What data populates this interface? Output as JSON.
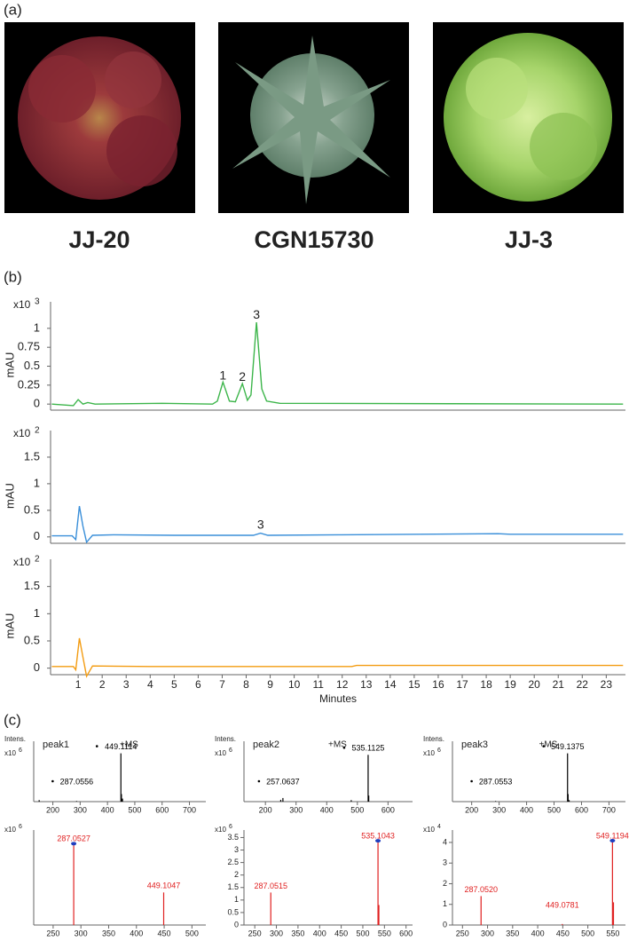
{
  "panel_labels": [
    "(a)",
    "(b)",
    "(c)"
  ],
  "samples": [
    "JJ-20",
    "CGN15730",
    "JJ-3"
  ],
  "chart_data": [
    {
      "type": "line",
      "y_label": "mAU",
      "y_multiplier": {
        "base": "x10",
        "exponent": "3"
      },
      "xlim": [
        -0.15,
        23.8
      ],
      "ylim": [
        -0.08,
        1.35
      ],
      "yticks": [
        0,
        0.25,
        0.5,
        0.75,
        1
      ],
      "series": [
        {
          "color": "#3cb54a",
          "x": [
            -0.1,
            0.8,
            1.0,
            1.2,
            1.4,
            1.7,
            4.5,
            6.6,
            6.8,
            7.03,
            7.3,
            7.55,
            7.84,
            8.05,
            8.2,
            8.43,
            8.65,
            8.85,
            9.4,
            23.7
          ],
          "values": [
            0,
            -0.02,
            0.06,
            0,
            0.02,
            0,
            0.01,
            0,
            0.04,
            0.29,
            0.04,
            0.03,
            0.27,
            0.05,
            0.12,
            1.08,
            0.2,
            0.04,
            0.01,
            0
          ]
        }
      ],
      "annotations": [
        {
          "text": "1",
          "x": 7.03,
          "y": 0.37
        },
        {
          "text": "2",
          "x": 7.84,
          "y": 0.35
        },
        {
          "text": "3",
          "x": 8.43,
          "y": 1.17
        }
      ]
    },
    {
      "type": "line",
      "y_label": "mAU",
      "y_multiplier": {
        "base": "x10",
        "exponent": "2"
      },
      "xlim": [
        -0.15,
        23.8
      ],
      "ylim": [
        -0.12,
        2.0
      ],
      "yticks": [
        0,
        0.5,
        1,
        1.5
      ],
      "series": [
        {
          "color": "#3a8fd9",
          "x": [
            -0.1,
            0.75,
            0.9,
            1.05,
            1.2,
            1.35,
            1.6,
            2.5,
            5,
            8.3,
            8.6,
            8.9,
            12,
            18.5,
            19,
            23.7
          ],
          "values": [
            0.02,
            0.02,
            -0.05,
            0.58,
            0.2,
            -0.1,
            0.03,
            0.04,
            0.03,
            0.03,
            0.07,
            0.03,
            0.04,
            0.06,
            0.05,
            0.05
          ]
        }
      ],
      "annotations": [
        {
          "text": "3",
          "x": 8.6,
          "y": 0.22
        }
      ]
    },
    {
      "type": "line",
      "y_label": "mAU",
      "y_multiplier": {
        "base": "x10",
        "exponent": "2"
      },
      "x_label": "Minutes",
      "xlim": [
        -0.15,
        23.8
      ],
      "ylim": [
        -0.12,
        2.0
      ],
      "yticks": [
        0,
        0.5,
        1,
        1.5
      ],
      "xticks": [
        1,
        2,
        3,
        4,
        5,
        6,
        7,
        8,
        9,
        10,
        11,
        12,
        13,
        14,
        15,
        16,
        17,
        18,
        19,
        20,
        21,
        22,
        23
      ],
      "series": [
        {
          "color": "#f39c12",
          "x": [
            -0.1,
            0.8,
            0.9,
            1.05,
            1.2,
            1.35,
            1.6,
            4,
            12.4,
            12.6,
            23.7
          ],
          "values": [
            0.03,
            0.03,
            -0.03,
            0.55,
            0.2,
            -0.15,
            0.04,
            0.03,
            0.03,
            0.05,
            0.05
          ]
        }
      ]
    },
    {
      "type": "stem",
      "title": "peak1",
      "mode_label": "+MS",
      "y_label": "Intens.",
      "y_multiplier": {
        "base": "x10",
        "exponent": "6"
      },
      "xlim": [
        130,
        760
      ],
      "ylim": [
        0,
        2
      ],
      "xticks": [
        200,
        300,
        400,
        500,
        600,
        700
      ],
      "series": [
        {
          "color": "#000000",
          "x": [
            150,
            287.0556,
            449.1114,
            451.1,
            455
          ],
          "values": [
            0.05,
            0.02,
            1.6,
            0.25,
            0.1
          ],
          "x_labels": [
            null,
            "287.0556",
            "449.1114",
            null,
            null
          ]
        }
      ]
    },
    {
      "type": "stem",
      "title": "peak2",
      "mode_label": "+MS",
      "y_label": "Intens.",
      "y_multiplier": {
        "base": "x10",
        "exponent": "6"
      },
      "xlim": [
        130,
        680
      ],
      "ylim": [
        0,
        2
      ],
      "xticks": [
        200,
        300,
        400,
        500,
        600
      ],
      "series": [
        {
          "color": "#000000",
          "x": [
            250,
            257.0637,
            480,
            535.1125,
            537.1
          ],
          "values": [
            0.06,
            0.12,
            0.05,
            1.55,
            0.2
          ],
          "x_labels": [
            null,
            "257.0637",
            null,
            "535.1125",
            null
          ]
        }
      ]
    },
    {
      "type": "stem",
      "title": "peak3",
      "mode_label": "+MS",
      "y_label": "Intens.",
      "y_multiplier": {
        "base": "x10",
        "exponent": "6"
      },
      "xlim": [
        130,
        760
      ],
      "ylim": [
        0,
        2
      ],
      "xticks": [
        200,
        300,
        400,
        500,
        600,
        700
      ],
      "series": [
        {
          "color": "#000000",
          "x": [
            287.0553,
            549.1375,
            551.1,
            555
          ],
          "values": [
            0.02,
            1.6,
            0.25,
            0.05
          ],
          "x_labels": [
            "287.0553",
            "549.1375",
            null,
            null
          ]
        }
      ]
    },
    {
      "type": "stem",
      "y_multiplier": {
        "base": "x10",
        "exponent": "6"
      },
      "xlim": [
        215,
        525
      ],
      "ylim": [
        0,
        1.05
      ],
      "xticks": [
        250,
        300,
        350,
        400,
        450,
        500
      ],
      "series": [
        {
          "color": "#e02020",
          "x": [
            287.0527,
            449.1047
          ],
          "values": [
            0.88,
            0.36
          ],
          "x_labels": [
            "287.0527",
            "449.1047"
          ]
        }
      ]
    },
    {
      "type": "stem",
      "y_multiplier": {
        "base": "x10",
        "exponent": "6"
      },
      "xlim": [
        225,
        615
      ],
      "ylim": [
        0,
        3.8
      ],
      "yticks": [
        0,
        0.5,
        1,
        1.5,
        2,
        2.5,
        3,
        3.5
      ],
      "xticks": [
        250,
        300,
        350,
        400,
        450,
        500,
        550,
        600
      ],
      "series": [
        {
          "color": "#e02020",
          "x": [
            287.0515,
            535.1043,
            537.1
          ],
          "values": [
            1.3,
            3.3,
            0.8
          ],
          "x_labels": [
            "287.0515",
            "535.1043",
            null
          ]
        }
      ]
    },
    {
      "type": "stem",
      "y_multiplier": {
        "base": "x10",
        "exponent": "4"
      },
      "xlim": [
        230,
        575
      ],
      "ylim": [
        0,
        4.6
      ],
      "yticks": [
        0,
        1,
        2,
        3,
        4
      ],
      "xticks": [
        250,
        300,
        350,
        400,
        450,
        500,
        550
      ],
      "series": [
        {
          "color": "#e02020",
          "x": [
            287.052,
            449.0781,
            549.1194,
            551.1
          ],
          "values": [
            1.4,
            0.05,
            4.0,
            1.1
          ],
          "x_labels": [
            "287.0520",
            "449.0781",
            "549.1194",
            null
          ]
        }
      ]
    }
  ]
}
